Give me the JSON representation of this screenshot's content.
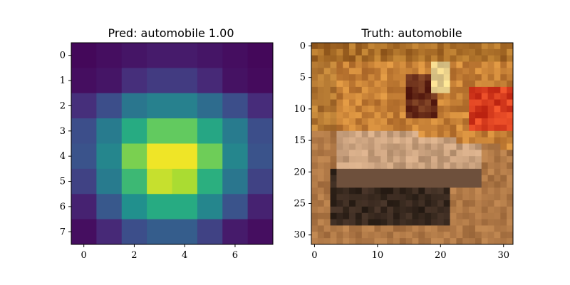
{
  "chart_data": [
    {
      "type": "heatmap",
      "title": "Pred: automobile 1.00",
      "xticks": [
        0,
        2,
        4,
        6
      ],
      "yticks": [
        0,
        1,
        2,
        3,
        4,
        5,
        6,
        7
      ],
      "xlim": [
        -0.5,
        7.5
      ],
      "ylim": [
        7.5,
        -0.5
      ],
      "colormap": "viridis",
      "grid": false,
      "values": [
        [
          0.02,
          0.04,
          0.06,
          0.08,
          0.08,
          0.06,
          0.04,
          0.02
        ],
        [
          0.04,
          0.06,
          0.14,
          0.18,
          0.18,
          0.12,
          0.05,
          0.03
        ],
        [
          0.14,
          0.24,
          0.4,
          0.44,
          0.44,
          0.36,
          0.24,
          0.13
        ],
        [
          0.24,
          0.42,
          0.62,
          0.76,
          0.76,
          0.6,
          0.42,
          0.24
        ],
        [
          0.26,
          0.46,
          0.8,
          0.98,
          0.98,
          0.78,
          0.46,
          0.26
        ],
        [
          0.2,
          0.42,
          0.68,
          0.92,
          0.88,
          0.64,
          0.4,
          0.2
        ],
        [
          0.1,
          0.28,
          0.5,
          0.62,
          0.62,
          0.46,
          0.26,
          0.1
        ],
        [
          0.04,
          0.12,
          0.24,
          0.3,
          0.3,
          0.2,
          0.08,
          0.04
        ]
      ]
    },
    {
      "type": "heatmap",
      "title": "Truth: automobile",
      "xticks": [
        0,
        10,
        20,
        30
      ],
      "yticks": [
        0,
        5,
        10,
        15,
        20,
        25,
        30
      ],
      "xlim": [
        -0.5,
        31.5
      ],
      "ylim": [
        31.5,
        -0.5
      ],
      "colormap": "rgb",
      "grid": false,
      "pixel_grid": [
        32,
        32
      ]
    }
  ]
}
